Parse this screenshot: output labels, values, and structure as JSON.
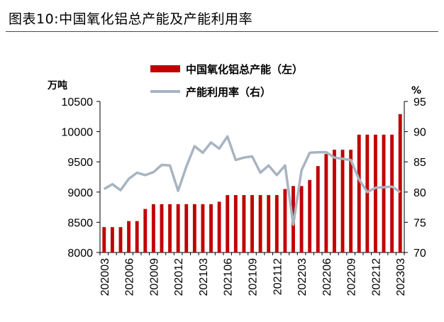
{
  "page_title": "图表10:中国氧化铝总产能及产能利用率",
  "chart_data": {
    "type": "bar+line",
    "title": "图表10:中国氧化铝总产能及产能利用率",
    "left_axis_unit": "万吨",
    "right_axis_unit": "%",
    "left_ylim": [
      8000,
      10500
    ],
    "left_ticks": [
      "8000",
      "8500",
      "9000",
      "9500",
      "10000",
      "10500"
    ],
    "right_ylim": [
      70,
      95
    ],
    "right_ticks": [
      "70",
      "75",
      "80",
      "85",
      "90",
      "95"
    ],
    "x_tick_labels": [
      "202003",
      "202006",
      "202009",
      "202012",
      "202103",
      "202106",
      "202109",
      "202112",
      "202203",
      "202206",
      "202209",
      "202212",
      "202303"
    ],
    "periods": [
      "202003",
      "202004",
      "202005",
      "202006",
      "202007",
      "202008",
      "202009",
      "202010",
      "202011",
      "202012",
      "202101",
      "202102",
      "202103",
      "202104",
      "202105",
      "202106",
      "202107",
      "202108",
      "202109",
      "202110",
      "202111",
      "202112",
      "202201",
      "202202",
      "202203",
      "202204",
      "202205",
      "202206",
      "202207",
      "202208",
      "202209",
      "202210",
      "202211",
      "202212",
      "202301",
      "202302",
      "202303"
    ],
    "series": [
      {
        "name": "中国氧化铝总产能（左）",
        "type": "bar",
        "axis": "left",
        "color": "#c00000",
        "values": [
          8420,
          8420,
          8420,
          8520,
          8520,
          8720,
          8800,
          8800,
          8800,
          8800,
          8800,
          8800,
          8800,
          8800,
          8840,
          8950,
          8950,
          8950,
          8950,
          8950,
          8950,
          8950,
          9050,
          9100,
          9100,
          9200,
          9430,
          9630,
          9700,
          9700,
          9700,
          9950,
          9950,
          9950,
          9950,
          9950,
          10290
        ]
      },
      {
        "name": "产能利用率（右）",
        "type": "line",
        "axis": "right",
        "color": "#a9b4c2",
        "values": [
          80.5,
          81.3,
          80.3,
          82.2,
          83.2,
          82.8,
          83.3,
          84.5,
          84.4,
          80.2,
          84.2,
          87.6,
          86.5,
          88.2,
          87.2,
          89.2,
          85.3,
          85.7,
          85.9,
          83.2,
          84.4,
          82.8,
          84.4,
          74.6,
          83.6,
          86.5,
          86.6,
          86.6,
          85.7,
          85.5,
          85.3,
          82.1,
          80.0,
          80.7,
          80.8,
          80.9,
          80.0
        ]
      }
    ]
  }
}
